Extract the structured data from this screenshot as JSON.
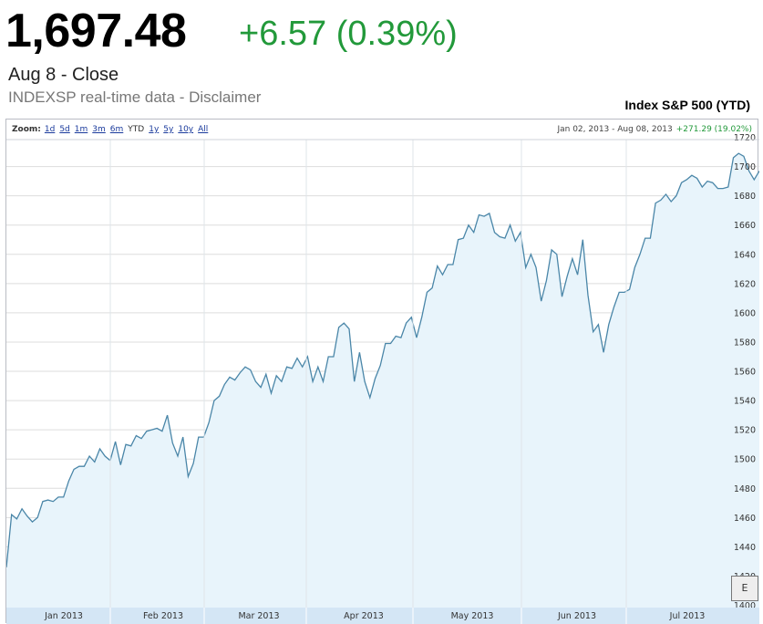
{
  "header": {
    "price": "1,697.48",
    "change": "+6.57 (0.39%)",
    "close_label": "Aug 8 - Close",
    "source": "INDEXSP real-time data - Disclaimer"
  },
  "chart_title": "Index S&P 500 (YTD)",
  "toolbar": {
    "zoom_label": "Zoom:",
    "zoom_options": [
      "1d",
      "5d",
      "1m",
      "3m",
      "6m",
      "YTD",
      "1y",
      "5y",
      "10y",
      "All"
    ],
    "selected": "YTD",
    "range_text": "Jan 02, 2013 - Aug 08, 2013",
    "range_change": "+271.29 (19.02%)"
  },
  "corner_button": "E",
  "colors": {
    "line": "#4a86a8",
    "fill": "#e8f4fb",
    "positive": "#22993a",
    "grid": "#dddddd",
    "axis_band": "#d4e6f5"
  },
  "chart_data": {
    "type": "area",
    "title": "Index S&P 500 (YTD)",
    "x_ticks": [
      "Jan 2013",
      "Feb 2013",
      "Mar 2013",
      "Apr 2013",
      "May 2013",
      "Jun 2013",
      "Jul 2013"
    ],
    "y_ticks": [
      1400,
      1420,
      1440,
      1460,
      1480,
      1500,
      1520,
      1540,
      1560,
      1580,
      1600,
      1620,
      1640,
      1660,
      1680,
      1700,
      1720
    ],
    "ylim": [
      1400,
      1720
    ],
    "grid": true,
    "series": [
      {
        "values": [
          1426,
          1462,
          1459,
          1466,
          1461,
          1457,
          1460,
          1471,
          1472,
          1471,
          1474,
          1474,
          1485,
          1493,
          1495,
          1495,
          1502,
          1498,
          1507,
          1502,
          1499,
          1512,
          1496,
          1510,
          1509,
          1516,
          1514,
          1519,
          1520,
          1521,
          1519,
          1530,
          1511,
          1502,
          1515,
          1488,
          1497,
          1515,
          1515,
          1525,
          1540,
          1543,
          1551,
          1556,
          1554,
          1559,
          1563,
          1561,
          1553,
          1549,
          1558,
          1545,
          1557,
          1553,
          1563,
          1562,
          1569,
          1563,
          1570,
          1553,
          1563,
          1553,
          1570,
          1570,
          1590,
          1593,
          1589,
          1553,
          1573,
          1553,
          1542,
          1555,
          1564,
          1579,
          1579,
          1584,
          1583,
          1593,
          1597,
          1583,
          1597,
          1614,
          1617,
          1632,
          1626,
          1633,
          1633,
          1650,
          1651,
          1660,
          1655,
          1667,
          1666,
          1668,
          1655,
          1652,
          1651,
          1660,
          1649,
          1655,
          1631,
          1640,
          1631,
          1608,
          1622,
          1643,
          1640,
          1611,
          1625,
          1637,
          1626,
          1650,
          1612,
          1587,
          1592,
          1573,
          1592,
          1604,
          1614,
          1614,
          1616,
          1631,
          1640,
          1651,
          1651,
          1675,
          1677,
          1681,
          1676,
          1680,
          1689,
          1691,
          1694,
          1692,
          1686,
          1690,
          1689,
          1685,
          1685,
          1686,
          1706,
          1709,
          1707,
          1697,
          1691,
          1697
        ]
      }
    ]
  }
}
